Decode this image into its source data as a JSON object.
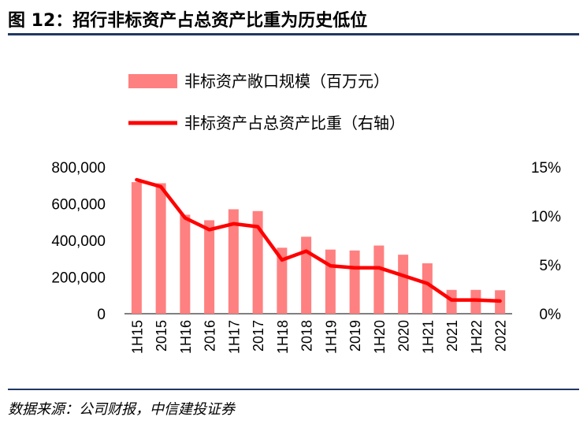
{
  "title": "图 12：招行非标资产占总资产比重为历史低位",
  "source": "数据来源：公司财报，中信建投证券",
  "colors": {
    "bar": "#ff8080",
    "line": "#ff0000",
    "rule": "#1f3864"
  },
  "chart_data": {
    "type": "bar+line",
    "categories": [
      "1H15",
      "2015",
      "1H16",
      "2016",
      "1H17",
      "2017",
      "1H18",
      "2018",
      "1H19",
      "2019",
      "1H20",
      "2020",
      "1H21",
      "2021",
      "1H22",
      "2022"
    ],
    "series": [
      {
        "name": "非标资产敞口规模（百万元）",
        "type": "bar",
        "axis": "left",
        "values": [
          718000,
          712000,
          540000,
          510000,
          570000,
          560000,
          360000,
          420000,
          350000,
          345000,
          372000,
          322000,
          275000,
          130000,
          130000,
          128000
        ]
      },
      {
        "name": "非标资产占总资产比重（右轴）",
        "type": "line",
        "axis": "right",
        "values": [
          13.7,
          13.0,
          9.8,
          8.6,
          9.2,
          8.9,
          5.5,
          6.4,
          4.9,
          4.7,
          4.7,
          3.9,
          3.1,
          1.4,
          1.4,
          1.3
        ]
      }
    ],
    "y_left": {
      "min": 0,
      "max": 800000,
      "ticks": [
        "0",
        "200,000",
        "400,000",
        "600,000",
        "800,000"
      ]
    },
    "y_right": {
      "min": 0,
      "max": 15,
      "ticks": [
        "0%",
        "5%",
        "10%",
        "15%"
      ]
    },
    "legend_position": "top",
    "grid": false
  }
}
